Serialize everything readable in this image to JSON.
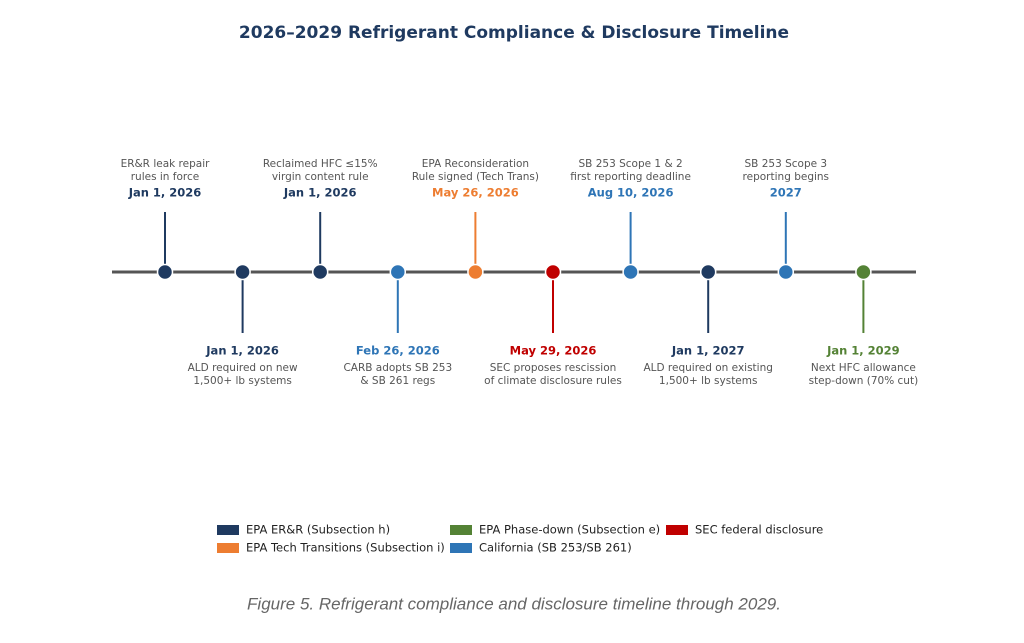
{
  "title": "2026–2029 Refrigerant Compliance & Disclosure Timeline",
  "events": [
    {
      "date": "Jan 1, 2026",
      "text": [
        "ER&R leak repair",
        "rules in force"
      ],
      "color": "#1f3a60"
    },
    {
      "date": "Jan 1, 2026",
      "text": [
        "ALD required on new",
        "1,500+ lb systems"
      ],
      "color": "#1f3a60"
    },
    {
      "date": "Jan 1, 2026",
      "text": [
        "Reclaimed HFC ≤15%",
        "virgin content rule"
      ],
      "color": "#1f3a60"
    },
    {
      "date": "Feb 26, 2026",
      "text": [
        "CARB adopts SB 253",
        "& SB 261 regs"
      ],
      "color": "#2e75b6"
    },
    {
      "date": "May 26, 2026",
      "text": [
        "EPA Reconsideration",
        "Rule signed (Tech Trans)"
      ],
      "color": "#ed7d31"
    },
    {
      "date": "May 29, 2026",
      "text": [
        "SEC proposes rescission",
        "of climate disclosure rules"
      ],
      "color": "#c00000"
    },
    {
      "date": "Aug 10, 2026",
      "text": [
        "SB 253 Scope 1 & 2",
        "first reporting deadline"
      ],
      "color": "#2e75b6"
    },
    {
      "date": "Jan 1, 2027",
      "text": [
        "ALD required on existing",
        "1,500+ lb systems"
      ],
      "color": "#1f3a60"
    },
    {
      "date": "2027",
      "text": [
        "SB 253 Scope 3",
        "reporting begins"
      ],
      "color": "#2e75b6"
    },
    {
      "date": "Jan 1, 2029",
      "text": [
        "Next HFC allowance",
        "step-down (70% cut)"
      ],
      "color": "#548235"
    }
  ],
  "legend": [
    {
      "label": "EPA ER&R (Subsection h)",
      "color": "#1f3a60"
    },
    {
      "label": "EPA Tech Transitions (Subsection i)",
      "color": "#ed7d31"
    },
    {
      "label": "EPA Phase-down (Subsection e)",
      "color": "#548235"
    },
    {
      "label": "California (SB 253/SB 261)",
      "color": "#2e75b6"
    },
    {
      "label": "SEC federal disclosure",
      "color": "#c00000"
    }
  ],
  "caption": "Figure 5. Refrigerant compliance and disclosure timeline through 2029."
}
